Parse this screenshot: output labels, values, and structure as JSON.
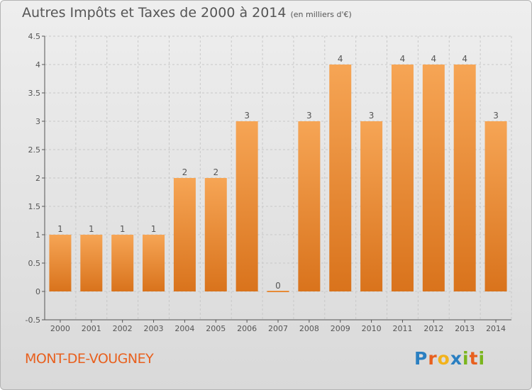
{
  "header": {
    "title": "Autres Impôts et Taxes de 2000 à 2014",
    "unit": "(en milliers d'€)"
  },
  "footer": {
    "commune": "MONT-DE-VOUGNEY",
    "logo": {
      "text": "Proxiti",
      "letters": [
        {
          "char": "P",
          "color": "#2a7fc1"
        },
        {
          "char": "r",
          "color": "#e8601e"
        },
        {
          "char": "o",
          "color": "#f2b21b"
        },
        {
          "char": "x",
          "color": "#2a7fc1"
        },
        {
          "char": "i",
          "color": "#7ab51d"
        },
        {
          "char": "t",
          "color": "#e8601e"
        },
        {
          "char": "i",
          "color": "#7ab51d"
        }
      ]
    }
  },
  "chart_data": {
    "type": "bar",
    "categories": [
      "2000",
      "2001",
      "2002",
      "2003",
      "2004",
      "2005",
      "2006",
      "2007",
      "2008",
      "2009",
      "2010",
      "2011",
      "2012",
      "2013",
      "2014"
    ],
    "values": [
      1,
      1,
      1,
      1,
      2,
      2,
      3,
      0,
      3,
      4,
      3,
      4,
      4,
      4,
      3
    ],
    "data_labels": [
      "1",
      "1",
      "1",
      "1",
      "2",
      "2",
      "3",
      "0",
      "3",
      "4",
      "3",
      "4",
      "4",
      "4",
      "3"
    ],
    "ylim": [
      -0.5,
      4.5
    ],
    "yticks": [
      -0.5,
      0,
      0.5,
      1,
      1.5,
      2,
      2.5,
      3,
      3.5,
      4,
      4.5
    ],
    "ytick_labels": [
      "-0.5",
      "0",
      "0.5",
      "1",
      "1.5",
      "2",
      "2.5",
      "3",
      "3.5",
      "4",
      "4.5"
    ],
    "grid": true,
    "colors": {
      "bar_light": "#f6a555",
      "bar_dark": "#d9731c",
      "grid": "#c8c8c8",
      "axis": "#555555"
    }
  }
}
